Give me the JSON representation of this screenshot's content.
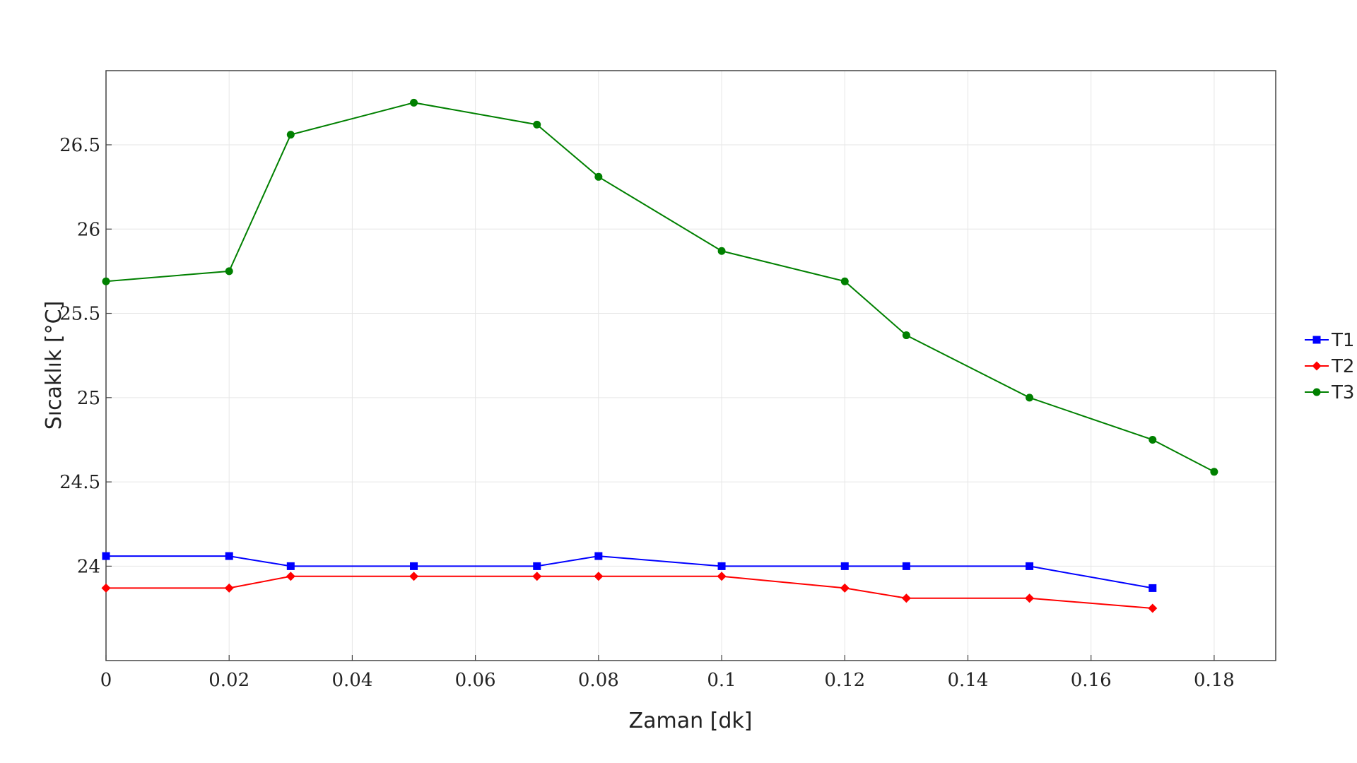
{
  "chart_data": {
    "type": "line",
    "title": "",
    "xlabel": "Zaman [dk]",
    "ylabel": "Sıcaklık [°C]",
    "xlim": [
      0,
      0.19
    ],
    "ylim": [
      23.44,
      26.94
    ],
    "xticks": [
      {
        "value": 0,
        "label": "0"
      },
      {
        "value": 0.02,
        "label": "0.02"
      },
      {
        "value": 0.04,
        "label": "0.04"
      },
      {
        "value": 0.06,
        "label": "0.06"
      },
      {
        "value": 0.08,
        "label": "0.08"
      },
      {
        "value": 0.1,
        "label": "0.1"
      },
      {
        "value": 0.12,
        "label": "0.12"
      },
      {
        "value": 0.14,
        "label": "0.14"
      },
      {
        "value": 0.16,
        "label": "0.16"
      },
      {
        "value": 0.18,
        "label": "0.18"
      }
    ],
    "yticks": [
      {
        "value": 24,
        "label": "24"
      },
      {
        "value": 24.5,
        "label": "24.5"
      },
      {
        "value": 25,
        "label": "25"
      },
      {
        "value": 25.5,
        "label": "25.5"
      },
      {
        "value": 26,
        "label": "26"
      },
      {
        "value": 26.5,
        "label": "26.5"
      }
    ],
    "grid": true,
    "legend_position": "right",
    "series": [
      {
        "name": "T1",
        "color": "#0000ff",
        "marker": "square",
        "x": [
          0,
          0.02,
          0.03,
          0.05,
          0.07,
          0.08,
          0.1,
          0.12,
          0.13,
          0.15,
          0.17
        ],
        "y": [
          24.06,
          24.06,
          24.0,
          24.0,
          24.0,
          24.06,
          24.0,
          24.0,
          24.0,
          24.0,
          23.87
        ]
      },
      {
        "name": "T2",
        "color": "#ff0000",
        "marker": "diamond",
        "x": [
          0,
          0.02,
          0.03,
          0.05,
          0.07,
          0.08,
          0.1,
          0.12,
          0.13,
          0.15,
          0.17
        ],
        "y": [
          23.87,
          23.87,
          23.94,
          23.94,
          23.94,
          23.94,
          23.94,
          23.87,
          23.81,
          23.81,
          23.75
        ]
      },
      {
        "name": "T3",
        "color": "#008000",
        "marker": "circle",
        "x": [
          0,
          0.02,
          0.03,
          0.05,
          0.07,
          0.08,
          0.1,
          0.12,
          0.13,
          0.15,
          0.17,
          0.18
        ],
        "y": [
          25.69,
          25.75,
          26.56,
          26.75,
          26.62,
          26.31,
          25.87,
          25.69,
          25.37,
          25.0,
          24.75,
          24.56
        ]
      }
    ]
  }
}
